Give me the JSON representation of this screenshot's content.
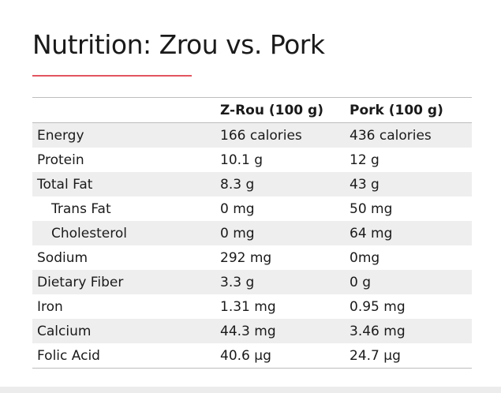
{
  "title": "Nutrition: Zrou vs. Pork",
  "colors": {
    "accent": "#e25560",
    "row_stripe": "#eeeeee",
    "rule": "#bdbdbd"
  },
  "table": {
    "headers": [
      "",
      "Z-Rou (100 g)",
      "Pork (100 g)"
    ],
    "rows": [
      {
        "label": "Energy",
        "zrou": "166 calories",
        "pork": "436 calories",
        "indent": false
      },
      {
        "label": "Protein",
        "zrou": "10.1 g",
        "pork": "12 g",
        "indent": false
      },
      {
        "label": "Total Fat",
        "zrou": "8.3 g",
        "pork": "43 g",
        "indent": false
      },
      {
        "label": "Trans Fat",
        "zrou": "0 mg",
        "pork": "50 mg",
        "indent": true
      },
      {
        "label": "Cholesterol",
        "zrou": "0 mg",
        "pork": "64 mg",
        "indent": true
      },
      {
        "label": "Sodium",
        "zrou": "292 mg",
        "pork": "0mg",
        "indent": false
      },
      {
        "label": "Dietary Fiber",
        "zrou": "3.3 g",
        "pork": "0 g",
        "indent": false
      },
      {
        "label": "Iron",
        "zrou": "1.31 mg",
        "pork": "0.95 mg",
        "indent": false
      },
      {
        "label": "Calcium",
        "zrou": "44.3 mg",
        "pork": "3.46 mg",
        "indent": false
      },
      {
        "label": "Folic Acid",
        "zrou": "40.6 µg",
        "pork": "24.7 µg",
        "indent": false
      }
    ]
  }
}
